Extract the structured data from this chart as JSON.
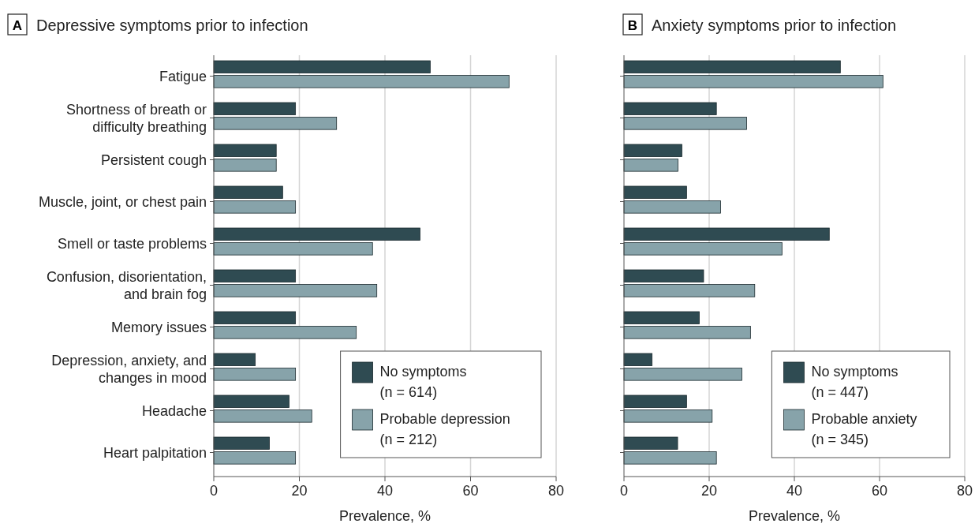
{
  "chart_data": [
    {
      "type": "bar",
      "orientation": "horizontal",
      "title": "Depressive symptoms prior to infection",
      "annotations": [
        "A"
      ],
      "xlabel": "Prevalence, %",
      "categories": [
        "Fatigue",
        "Shortness of breath or\ndifficulty breathing",
        "Persistent cough",
        "Muscle, joint, or chest pain",
        "Smell or taste problems",
        "Confusion, disorientation,\nand brain fog",
        "Memory issues",
        "Depression, anxiety, and\nchanges in mood",
        "Headache",
        "Heart palpitation"
      ],
      "series": [
        {
          "name": "No symptoms\n(n = 614)",
          "color": "#2f4b52",
          "values": [
            50.6,
            19.1,
            14.6,
            16.1,
            48.2,
            19.1,
            19.1,
            9.7,
            17.6,
            13.0
          ]
        },
        {
          "name": "Probable depression\n(n = 212)",
          "color": "#87a3aa",
          "values": [
            69.0,
            28.7,
            14.6,
            19.1,
            37.1,
            38.1,
            33.3,
            19.1,
            22.9,
            19.1
          ]
        }
      ],
      "xlim": [
        0,
        80
      ],
      "xticks": [
        0,
        20,
        40,
        60,
        80
      ],
      "grid": "x",
      "legend": "bottom right"
    },
    {
      "type": "bar",
      "orientation": "horizontal",
      "title": "Anxiety symptoms prior to infection",
      "annotations": [
        "B"
      ],
      "xlabel": "Prevalence, %",
      "categories": [
        null,
        null,
        null,
        null,
        null,
        null,
        null,
        null,
        null,
        null
      ],
      "series": [
        {
          "name": "No symptoms\n(n = 447)",
          "color": "#2f4b52",
          "values": [
            50.8,
            21.7,
            13.6,
            14.7,
            48.2,
            18.7,
            17.7,
            6.6,
            14.7,
            12.6
          ]
        },
        {
          "name": "Probable anxiety\n(n = 345)",
          "color": "#87a3aa",
          "values": [
            60.8,
            28.8,
            12.7,
            22.7,
            37.1,
            30.7,
            29.7,
            27.7,
            20.7,
            21.7
          ]
        }
      ],
      "xlim": [
        0,
        80
      ],
      "xticks": [
        0,
        20,
        40,
        60,
        80
      ],
      "grid": "x",
      "legend": "bottom right",
      "tick_labels": "x"
    }
  ]
}
